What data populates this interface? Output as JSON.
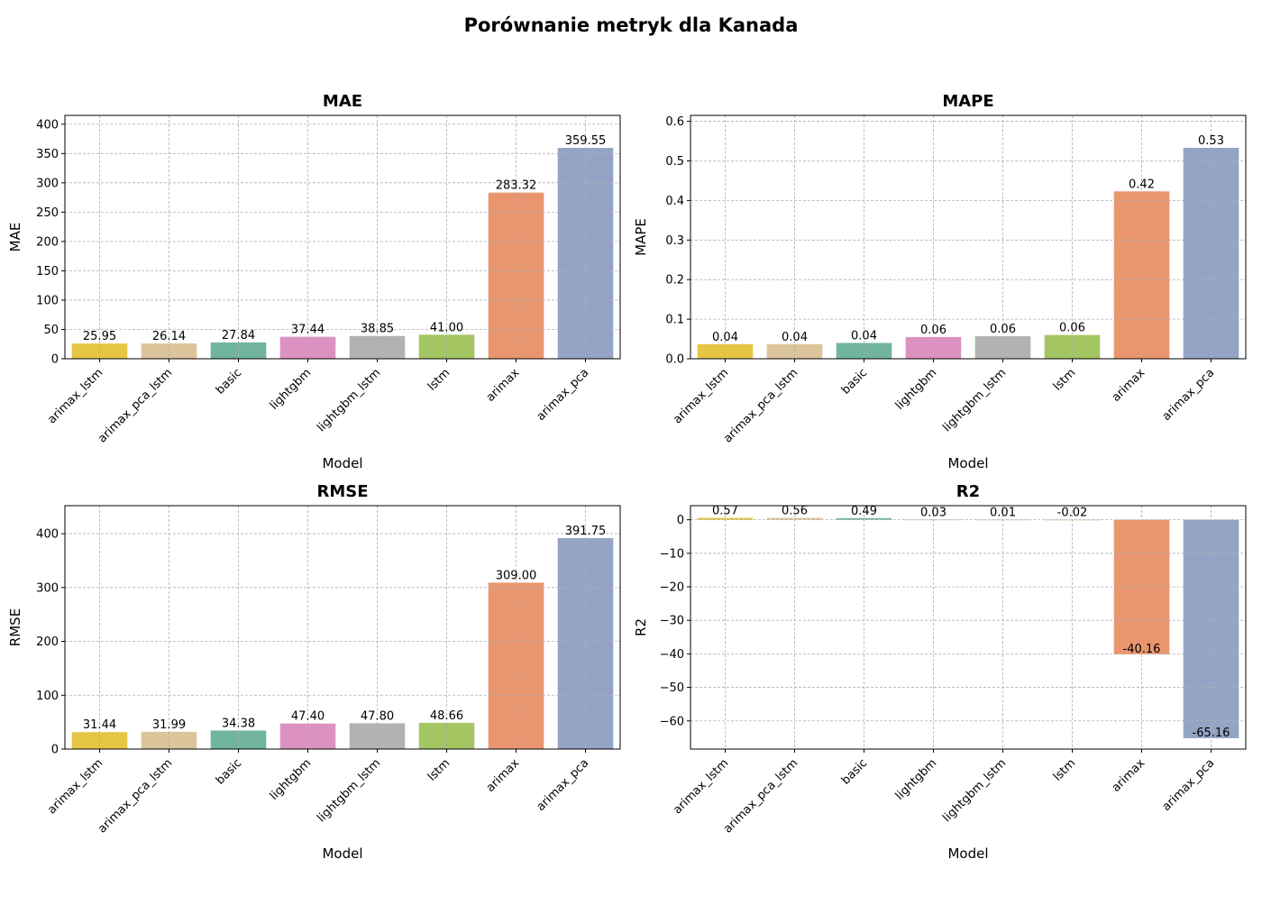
{
  "figure": {
    "title": "Porównanie metryk dla Kanada"
  },
  "chart_data": [
    {
      "type": "bar",
      "title": "MAE",
      "xlabel": "Model",
      "ylabel": "MAE",
      "categories": [
        "arimax_lstm",
        "arimax_pca_lstm",
        "basic",
        "lightgbm",
        "lightgbm_lstm",
        "lstm",
        "arimax",
        "arimax_pca"
      ],
      "values": [
        25.95,
        26.14,
        27.84,
        37.44,
        38.85,
        41.0,
        283.32,
        359.55
      ],
      "value_labels": [
        "25.95",
        "26.14",
        "27.84",
        "37.44",
        "38.85",
        "41.00",
        "283.32",
        "359.55"
      ],
      "ylim": [
        0,
        415
      ],
      "yticks": [
        0,
        50,
        100,
        150,
        200,
        250,
        300,
        350,
        400
      ],
      "ytick_labels": [
        "0",
        "50",
        "100",
        "150",
        "200",
        "250",
        "300",
        "350",
        "400"
      ],
      "grid": true
    },
    {
      "type": "bar",
      "title": "MAPE",
      "xlabel": "Model",
      "ylabel": "MAPE",
      "categories": [
        "arimax_lstm",
        "arimax_pca_lstm",
        "basic",
        "lightgbm",
        "lightgbm_lstm",
        "lstm",
        "arimax",
        "arimax_pca"
      ],
      "values": [
        0.037,
        0.037,
        0.04,
        0.055,
        0.057,
        0.06,
        0.423,
        0.533
      ],
      "value_labels": [
        "0.04",
        "0.04",
        "0.04",
        "0.06",
        "0.06",
        "0.06",
        "0.42",
        "0.53"
      ],
      "ylim": [
        0,
        0.615
      ],
      "yticks": [
        0,
        0.1,
        0.2,
        0.3,
        0.4,
        0.5,
        0.6
      ],
      "ytick_labels": [
        "0.0",
        "0.1",
        "0.2",
        "0.3",
        "0.4",
        "0.5",
        "0.6"
      ],
      "grid": true
    },
    {
      "type": "bar",
      "title": "RMSE",
      "xlabel": "Model",
      "ylabel": "RMSE",
      "categories": [
        "arimax_lstm",
        "arimax_pca_lstm",
        "basic",
        "lightgbm",
        "lightgbm_lstm",
        "lstm",
        "arimax",
        "arimax_pca"
      ],
      "values": [
        31.44,
        31.99,
        34.38,
        47.4,
        47.8,
        48.66,
        309.0,
        391.75
      ],
      "value_labels": [
        "31.44",
        "31.99",
        "34.38",
        "47.40",
        "47.80",
        "48.66",
        "309.00",
        "391.75"
      ],
      "ylim": [
        0,
        452
      ],
      "yticks": [
        0,
        100,
        200,
        300,
        400
      ],
      "ytick_labels": [
        "0",
        "100",
        "200",
        "300",
        "400"
      ],
      "grid": true
    },
    {
      "type": "bar",
      "title": "R2",
      "xlabel": "Model",
      "ylabel": "R2",
      "categories": [
        "arimax_lstm",
        "arimax_pca_lstm",
        "basic",
        "lightgbm",
        "lightgbm_lstm",
        "lstm",
        "arimax",
        "arimax_pca"
      ],
      "values": [
        0.57,
        0.56,
        0.49,
        0.03,
        0.01,
        -0.02,
        -40.16,
        -65.16
      ],
      "value_labels": [
        "0.57",
        "0.56",
        "0.49",
        "0.03",
        "0.01",
        "-0.02",
        "-40.16",
        "-65.16"
      ],
      "ylim": [
        -68.4,
        4.2
      ],
      "yticks": [
        0,
        -10,
        -20,
        -30,
        -40,
        -50,
        -60
      ],
      "ytick_labels": [
        "0",
        "−10",
        "−20",
        "−30",
        "−40",
        "−50",
        "−60"
      ],
      "grid": true
    }
  ],
  "colors": [
    "#e5c543",
    "#dcc49b",
    "#71b59d",
    "#db92c0",
    "#b2b2b2",
    "#a3c663",
    "#e9966f",
    "#94a4c5"
  ]
}
